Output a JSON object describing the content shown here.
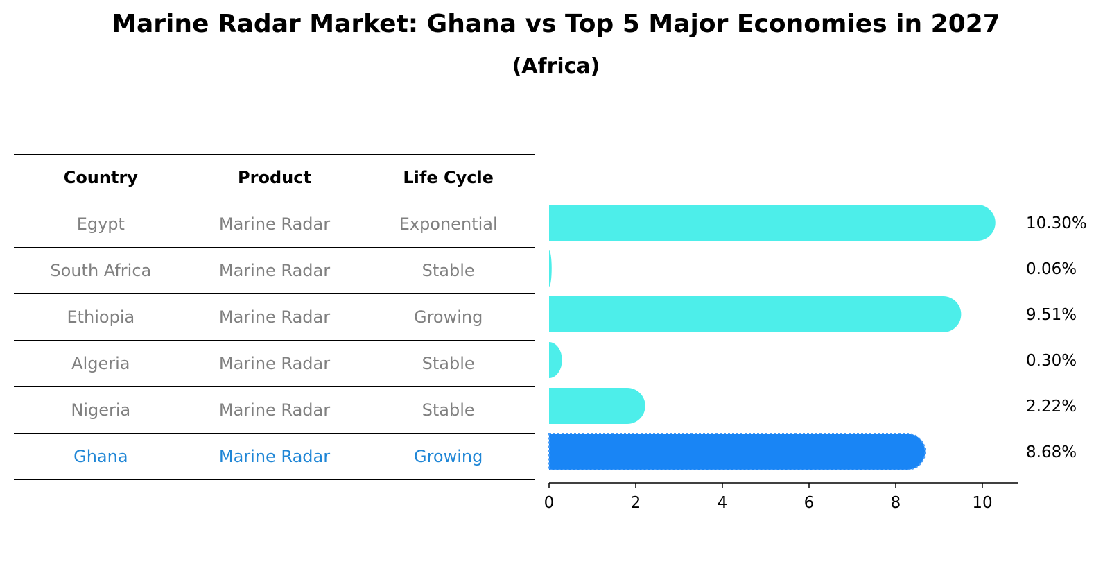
{
  "title": "Marine Radar Market: Ghana vs Top 5 Major Economies in 2027",
  "subtitle": "(Africa)",
  "table": {
    "headers": [
      "Country",
      "Product",
      "Life Cycle"
    ],
    "rows": [
      [
        "Egypt",
        "Marine Radar",
        "Exponential"
      ],
      [
        "South Africa",
        "Marine Radar",
        "Stable"
      ],
      [
        "Ethiopia",
        "Marine Radar",
        "Growing"
      ],
      [
        "Algeria",
        "Marine Radar",
        "Stable"
      ],
      [
        "Nigeria",
        "Marine Radar",
        "Stable"
      ],
      [
        "Ghana",
        "Marine Radar",
        "Growing"
      ]
    ],
    "highlight_row": 5
  },
  "chart_data": {
    "type": "bar",
    "orientation": "horizontal",
    "categories": [
      "Egypt",
      "South Africa",
      "Ethiopia",
      "Algeria",
      "Nigeria",
      "Ghana"
    ],
    "values": [
      10.3,
      0.06,
      9.51,
      0.3,
      2.22,
      8.68
    ],
    "value_labels": [
      "10.30%",
      "0.06%",
      "9.51%",
      "0.30%",
      "2.22%",
      "8.68%"
    ],
    "xlim": [
      0,
      10.8
    ],
    "xticks": [
      0,
      2,
      4,
      6,
      8,
      10
    ],
    "highlight_index": 5,
    "colors": {
      "bar": "#4deeea",
      "highlight": "#1985f5",
      "highlight_text": "#1f86d6",
      "muted_text": "#808080"
    },
    "grid": false
  }
}
